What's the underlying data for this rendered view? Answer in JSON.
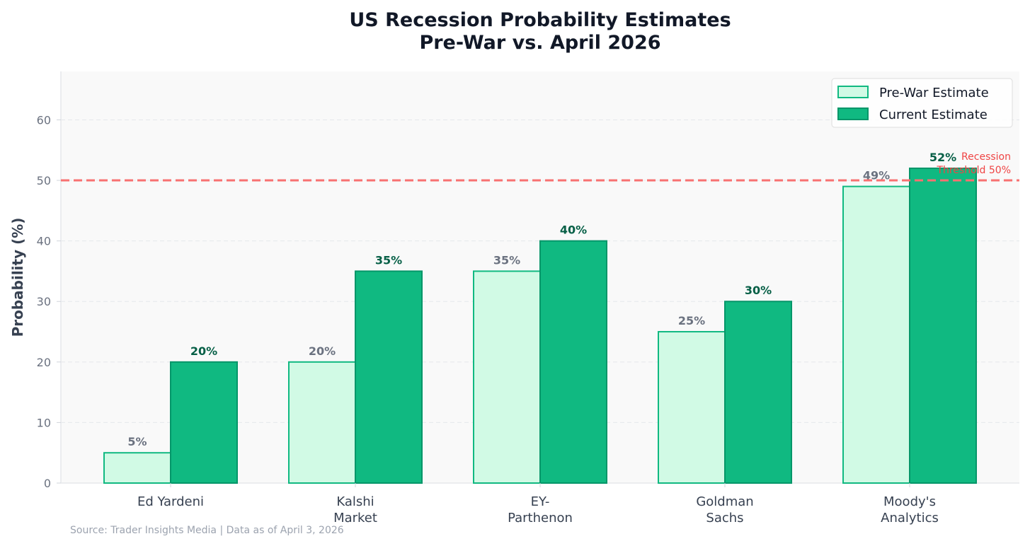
{
  "chart_data": {
    "type": "bar",
    "title": [
      "US Recession Probability Estimates",
      "Pre-War vs. April 2026"
    ],
    "ylabel": "Probability (%)",
    "xlabel": "",
    "ylim": [
      0,
      68
    ],
    "yticks": [
      0,
      10,
      20,
      30,
      40,
      50,
      60
    ],
    "grid": true,
    "categories": [
      [
        "Ed Yardeni"
      ],
      [
        "Kalshi",
        "Market"
      ],
      [
        "EY-",
        "Parthenon"
      ],
      [
        "Goldman",
        "Sachs"
      ],
      [
        "Moody's",
        "Analytics"
      ]
    ],
    "series": [
      {
        "name": "Pre-War Estimate",
        "values": [
          5,
          20,
          35,
          25,
          49
        ],
        "labels": [
          "5%",
          "20%",
          "35%",
          "25%",
          "49%"
        ],
        "fill": "#d1fae5",
        "stroke": "#10b981"
      },
      {
        "name": "Current Estimate",
        "values": [
          20,
          35,
          40,
          30,
          52
        ],
        "labels": [
          "20%",
          "35%",
          "40%",
          "30%",
          "52%"
        ],
        "fill": "#10b981",
        "stroke": "#059669"
      }
    ],
    "threshold": {
      "value": 50,
      "label": [
        "Recession",
        "Threshold 50%"
      ],
      "color": "#f87171"
    },
    "legend_position": "top-right",
    "source": "Source: Trader Insights Media | Data as of April 3, 2026"
  }
}
